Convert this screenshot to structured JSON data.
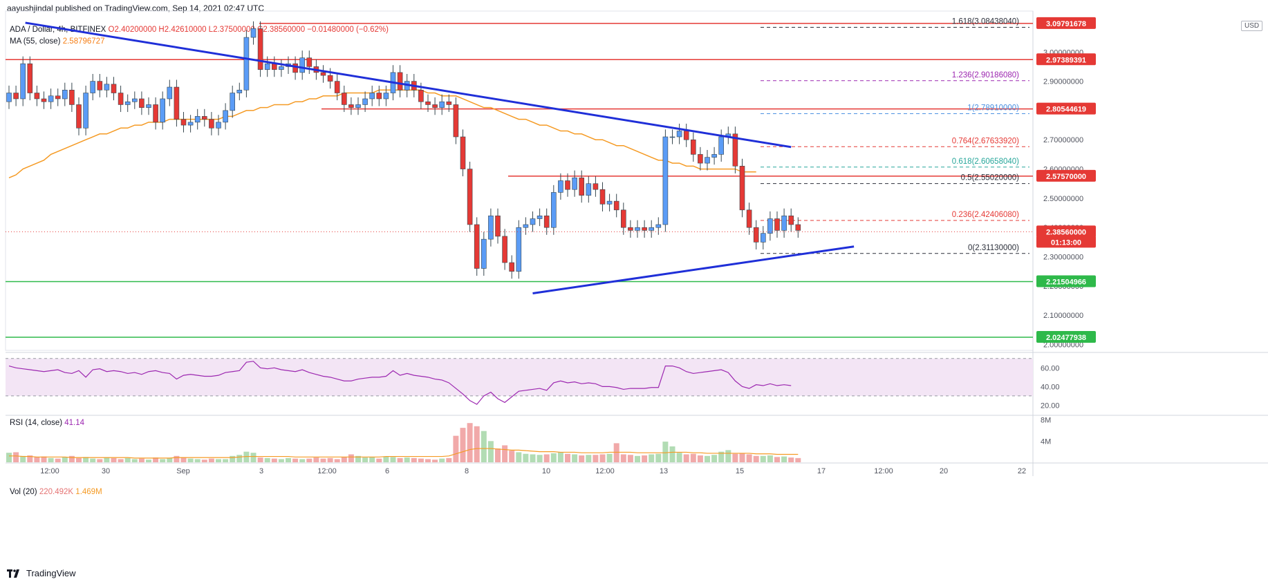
{
  "header": {
    "publisher": "aayushjindal published on TradingView.com, Sep 14, 2021 02:47 UTC"
  },
  "legend": {
    "symbol": "ADA / Dollar, 4h, BITFINEX",
    "ohlc": "O2.40200000 H2.42610000 L2.37500000 C2.38560000 −0.01480000 (−0.62%)",
    "ma_label": "MA (55, close)",
    "ma_value": "2.58796727"
  },
  "rsi_legend": {
    "label": "RSI (14, close)",
    "value": "41.14"
  },
  "vol_legend": {
    "label": "Vol (20)",
    "v1": "220.492K",
    "v2": "1.469M"
  },
  "currency": "USD",
  "footer": {
    "brand": "TradingView"
  },
  "colors": {
    "up": "#5b9cf6",
    "down": "#e53935",
    "ma": "#f59a23",
    "trend": "#1f2fd8",
    "resistance": "#e53935",
    "support": "#2eb94a",
    "rsi": "#9c27b0"
  },
  "chart_data": {
    "type": "candlestick",
    "symbol": "ADA / Dollar",
    "timeframe": "4h",
    "ylim": [
      1.98,
      3.14
    ],
    "x_tick_labels": [
      "12:00",
      "30",
      "Sep",
      "3",
      "12:00",
      "6",
      "8",
      "10",
      "12:00",
      "13",
      "15",
      "17",
      "12:00",
      "20",
      "22"
    ],
    "y_tick_labels": [
      "2.00000000",
      "2.10000000",
      "2.20000000",
      "2.30000000",
      "2.40000000",
      "2.50000000",
      "2.60000000",
      "2.70000000",
      "2.80000000",
      "2.90000000",
      "3.00000000"
    ],
    "price_tags": [
      {
        "value": "3.09791678",
        "color": "#e53935"
      },
      {
        "value": "2.97389391",
        "color": "#e53935"
      },
      {
        "value": "2.80544619",
        "color": "#e53935"
      },
      {
        "value": "2.57570000",
        "color": "#e53935"
      },
      {
        "value": "2.38560000",
        "color": "#e53935"
      },
      {
        "value": "01:13:00",
        "color": "#e53935"
      },
      {
        "value": "2.21504966",
        "color": "#2eb94a"
      },
      {
        "value": "2.02477938",
        "color": "#2eb94a"
      }
    ],
    "fib_levels": [
      {
        "label": "1.618(3.08438040)",
        "value": 3.0844,
        "color": "#2a2e39"
      },
      {
        "label": "1.236(2.90186080)",
        "value": 2.9019,
        "color": "#9c27b0"
      },
      {
        "label": "1(2.78910000)",
        "value": 2.7891,
        "color": "#4a90e2"
      },
      {
        "label": "0.764(2.67633920)",
        "value": 2.6763,
        "color": "#e53935"
      },
      {
        "label": "0.618(2.60658040)",
        "value": 2.6066,
        "color": "#26a69a"
      },
      {
        "label": "0.5(2.55020000)",
        "value": 2.5502,
        "color": "#2a2e39"
      },
      {
        "label": "0.236(2.42406080)",
        "value": 2.4241,
        "color": "#e53935"
      },
      {
        "label": "0(2.31130000)",
        "value": 2.3113,
        "color": "#2a2e39"
      }
    ],
    "horizontal_levels": [
      {
        "value": 3.0979,
        "kind": "resistance"
      },
      {
        "value": 2.9739,
        "kind": "resistance"
      },
      {
        "value": 2.8054,
        "kind": "resistance"
      },
      {
        "value": 2.5757,
        "kind": "resistance"
      },
      {
        "value": 2.215,
        "kind": "support"
      },
      {
        "value": 2.0248,
        "kind": "support"
      }
    ],
    "close_series": [
      2.86,
      2.84,
      2.96,
      2.86,
      2.84,
      2.83,
      2.85,
      2.84,
      2.87,
      2.82,
      2.74,
      2.86,
      2.9,
      2.87,
      2.89,
      2.86,
      2.82,
      2.83,
      2.84,
      2.81,
      2.82,
      2.76,
      2.84,
      2.88,
      2.77,
      2.75,
      2.76,
      2.78,
      2.77,
      2.74,
      2.76,
      2.8,
      2.86,
      2.87,
      3.05,
      3.08,
      2.94,
      2.96,
      2.94,
      2.95,
      2.96,
      2.93,
      2.98,
      2.95,
      2.93,
      2.92,
      2.9,
      2.86,
      2.82,
      2.81,
      2.82,
      2.84,
      2.86,
      2.84,
      2.86,
      2.93,
      2.87,
      2.9,
      2.87,
      2.83,
      2.82,
      2.81,
      2.83,
      2.82,
      2.71,
      2.6,
      2.41,
      2.26,
      2.36,
      2.44,
      2.37,
      2.28,
      2.25,
      2.4,
      2.41,
      2.43,
      2.44,
      2.4,
      2.52,
      2.56,
      2.53,
      2.57,
      2.51,
      2.55,
      2.53,
      2.48,
      2.49,
      2.46,
      2.4,
      2.39,
      2.4,
      2.39,
      2.4,
      2.41,
      2.71,
      2.71,
      2.73,
      2.7,
      2.65,
      2.62,
      2.64,
      2.65,
      2.71,
      2.72,
      2.61,
      2.46,
      2.4,
      2.35,
      2.38,
      2.43,
      2.39,
      2.44,
      2.41,
      2.39
    ],
    "ma_series": [
      2.57,
      2.58,
      2.6,
      2.61,
      2.62,
      2.63,
      2.65,
      2.66,
      2.67,
      2.68,
      2.69,
      2.7,
      2.71,
      2.72,
      2.72,
      2.73,
      2.74,
      2.74,
      2.75,
      2.75,
      2.76,
      2.76,
      2.76,
      2.77,
      2.77,
      2.77,
      2.77,
      2.77,
      2.77,
      2.77,
      2.77,
      2.78,
      2.78,
      2.79,
      2.8,
      2.8,
      2.81,
      2.81,
      2.82,
      2.82,
      2.82,
      2.83,
      2.83,
      2.84,
      2.84,
      2.85,
      2.85,
      2.85,
      2.86,
      2.86,
      2.86,
      2.86,
      2.86,
      2.87,
      2.87,
      2.87,
      2.87,
      2.87,
      2.87,
      2.87,
      2.86,
      2.86,
      2.85,
      2.85,
      2.85,
      2.84,
      2.83,
      2.82,
      2.81,
      2.81,
      2.8,
      2.79,
      2.78,
      2.77,
      2.77,
      2.76,
      2.75,
      2.75,
      2.74,
      2.73,
      2.73,
      2.72,
      2.72,
      2.71,
      2.7,
      2.7,
      2.69,
      2.68,
      2.68,
      2.67,
      2.66,
      2.65,
      2.64,
      2.63,
      2.63,
      2.62,
      2.62,
      2.61,
      2.61,
      2.6,
      2.6,
      2.6,
      2.6,
      2.6,
      2.6,
      2.59,
      2.59,
      2.59
    ],
    "trendlines": [
      {
        "name": "",
        "from": [
          2.34,
          3.1
        ],
        "to": [
          112.0,
          2.675
        ]
      },
      {
        "name": "",
        "from": [
          75.0,
          2.175
        ],
        "to": [
          121.0,
          2.335
        ]
      }
    ],
    "rsi": {
      "ylim": [
        10,
        75
      ],
      "y_tick_labels": [
        "20.00",
        "40.00",
        "60.00"
      ],
      "band": [
        30,
        70
      ],
      "values": [
        62,
        60,
        59,
        58,
        57,
        56,
        57,
        58,
        55,
        54,
        57,
        50,
        58,
        59,
        56,
        57,
        56,
        54,
        55,
        53,
        56,
        57,
        55,
        54,
        48,
        52,
        53,
        52,
        51,
        51,
        52,
        55,
        56,
        57,
        66,
        67,
        60,
        59,
        60,
        58,
        57,
        56,
        58,
        55,
        53,
        51,
        50,
        48,
        46,
        46,
        48,
        49,
        50,
        50,
        51,
        57,
        52,
        54,
        52,
        51,
        50,
        48,
        47,
        44,
        38,
        32,
        25,
        21,
        30,
        34,
        27,
        23,
        29,
        35,
        36,
        37,
        38,
        36,
        44,
        46,
        44,
        45,
        43,
        44,
        43,
        40,
        40,
        39,
        37,
        38,
        38,
        38,
        39,
        39,
        62,
        62,
        60,
        56,
        54,
        55,
        56,
        57,
        58,
        55,
        46,
        40,
        38,
        42,
        41,
        43,
        41,
        42,
        41
      ]
    },
    "volume": {
      "ylim": [
        0,
        8.6
      ],
      "y_tick_labels": [
        "4M",
        "8M"
      ],
      "ma": [
        1.2,
        1.2,
        1.1,
        1.1,
        1.0,
        1.0,
        1.0,
        1.0,
        1.0,
        0.9,
        0.9,
        0.9,
        0.9,
        0.9,
        0.9,
        0.9,
        0.9,
        0.9,
        0.8,
        0.8,
        0.8,
        0.8,
        0.8,
        0.8,
        0.9,
        0.9,
        0.9,
        0.9,
        0.9,
        0.9,
        0.9,
        0.9,
        0.9,
        1.0,
        1.1,
        1.1,
        1.1,
        1.1,
        1.1,
        1.1,
        1.1,
        1.0,
        1.0,
        1.0,
        1.0,
        1.0,
        1.0,
        1.0,
        1.0,
        1.0,
        1.0,
        1.0,
        1.0,
        1.0,
        1.1,
        1.1,
        1.1,
        1.1,
        1.1,
        1.1,
        1.1,
        1.1,
        1.1,
        1.2,
        1.6,
        2.0,
        2.4,
        2.6,
        2.6,
        2.6,
        2.5,
        2.4,
        2.3,
        2.3,
        2.2,
        2.1,
        2.0,
        2.0,
        2.0,
        1.9,
        1.9,
        1.9,
        1.8,
        1.8,
        1.8,
        1.8,
        1.9,
        1.9,
        1.9,
        1.9,
        1.8,
        1.8,
        1.8,
        1.8,
        1.8,
        1.9,
        1.9,
        1.9,
        1.8,
        1.8,
        1.7,
        1.7,
        1.7,
        1.7,
        1.7,
        1.7,
        1.7,
        1.6,
        1.6,
        1.6,
        1.5,
        1.5,
        1.5,
        1.5
      ],
      "values": [
        1.8,
        1.9,
        1.2,
        1.3,
        1.0,
        1.1,
        0.8,
        0.7,
        1.0,
        1.2,
        0.8,
        1.0,
        0.7,
        0.6,
        0.9,
        0.8,
        0.6,
        0.8,
        0.6,
        0.7,
        0.5,
        0.9,
        0.6,
        0.8,
        1.2,
        0.9,
        0.7,
        0.6,
        0.5,
        0.7,
        0.6,
        0.6,
        1.2,
        1.4,
        2.0,
        1.8,
        0.9,
        0.8,
        0.7,
        0.6,
        0.8,
        0.7,
        0.6,
        0.7,
        0.9,
        0.7,
        0.8,
        0.6,
        1.0,
        1.5,
        1.2,
        0.9,
        1.0,
        0.7,
        1.1,
        1.0,
        0.8,
        0.9,
        0.8,
        0.7,
        0.6,
        0.5,
        0.7,
        0.8,
        5.0,
        6.5,
        7.4,
        6.8,
        5.9,
        4.0,
        2.6,
        3.2,
        2.2,
        1.9,
        1.6,
        1.5,
        1.4,
        1.5,
        1.7,
        1.9,
        1.6,
        1.5,
        1.3,
        1.4,
        1.4,
        1.5,
        1.6,
        3.6,
        1.5,
        1.4,
        1.2,
        1.3,
        1.5,
        1.6,
        3.9,
        3.0,
        1.8,
        1.5,
        1.6,
        1.3,
        1.2,
        1.4,
        2.0,
        2.3,
        1.6,
        1.7,
        1.5,
        1.2,
        1.2,
        1.3,
        1.0,
        1.1,
        0.9,
        0.8
      ]
    }
  }
}
